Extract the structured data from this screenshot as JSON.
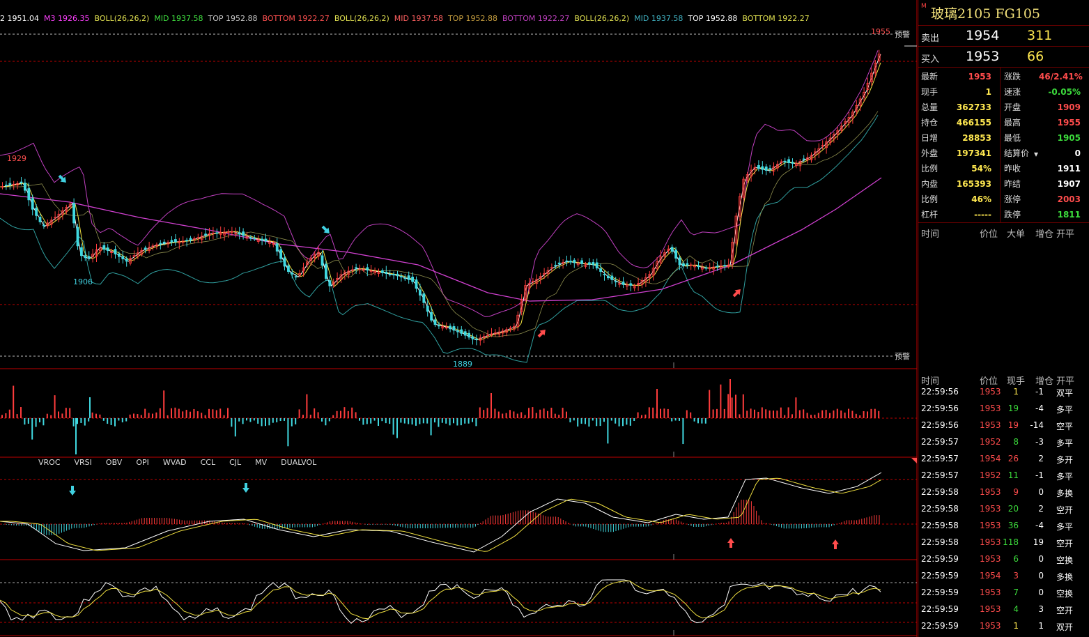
{
  "legend": [
    {
      "text": "2 1951.04",
      "color": "#ffffff"
    },
    {
      "text": "M3 1926.35",
      "color": "#ff40ff"
    },
    {
      "text": "BOLL(26,26,2)",
      "color": "#e0e050"
    },
    {
      "text": "MID 1937.58",
      "color": "#40e040"
    },
    {
      "text": "TOP 1952.88",
      "color": "#c8c8c8"
    },
    {
      "text": "BOTTOM 1922.27",
      "color": "#ff5050"
    },
    {
      "text": "BOLL(26,26,2)",
      "color": "#e0e050"
    },
    {
      "text": "MID 1937.58",
      "color": "#ff6060"
    },
    {
      "text": "TOP 1952.88",
      "color": "#c8a040"
    },
    {
      "text": "BOTTOM 1922.27",
      "color": "#c040c0"
    },
    {
      "text": "BOLL(26,26,2)",
      "color": "#e0e050"
    },
    {
      "text": "MID 1937.58",
      "color": "#40b0c0"
    },
    {
      "text": "TOP 1952.88",
      "color": "#ffffff"
    },
    {
      "text": "BOTTOM 1922.27",
      "color": "#e0e050"
    }
  ],
  "price_labels": {
    "high": "1955",
    "peak_left": "1929",
    "low_left": "1906",
    "low": "1889",
    "alert_top": "预警",
    "alert_bottom": "预警"
  },
  "indicator_tabs": [
    "VROC",
    "VRSI",
    "OBV",
    "OPI",
    "WVAD",
    "CCL",
    "CJL",
    "MV",
    "DUALVOL"
  ],
  "panel": {
    "m_badge": "M",
    "title": "玻璃2105  FG105",
    "ask": {
      "label": "卖出",
      "price": "1954",
      "volume": "311"
    },
    "bid": {
      "label": "买入",
      "price": "1953",
      "volume": "66"
    },
    "stats_left": [
      {
        "label": "最新",
        "value": "1953",
        "color": "red"
      },
      {
        "label": "现手",
        "value": "1",
        "color": "yel"
      },
      {
        "label": "总量",
        "value": "362733",
        "color": "yel"
      },
      {
        "label": "持仓",
        "value": "466155",
        "color": "yel"
      },
      {
        "label": "日增",
        "value": "28853",
        "color": "yel"
      },
      {
        "label": "外盘",
        "value": "197341",
        "color": "yel"
      },
      {
        "label": "比例",
        "value": "54%",
        "color": "yel"
      },
      {
        "label": "内盘",
        "value": "165393",
        "color": "yel"
      },
      {
        "label": "比例",
        "value": "46%",
        "color": "yel"
      },
      {
        "label": "杠杆",
        "value": "-----",
        "color": "yel"
      }
    ],
    "stats_right": [
      {
        "label": "涨跌",
        "value": "46/2.41%",
        "color": "red"
      },
      {
        "label": "速涨",
        "value": "-0.05%",
        "color": "grn"
      },
      {
        "label": "开盘",
        "value": "1909",
        "color": "red"
      },
      {
        "label": "最高",
        "value": "1955",
        "color": "red"
      },
      {
        "label": "最低",
        "value": "1905",
        "color": "grn"
      },
      {
        "label": "结算价",
        "value": "0",
        "color": "wht",
        "dropdown": "▾"
      },
      {
        "label": "昨收",
        "value": "1911",
        "color": "wht"
      },
      {
        "label": "昨结",
        "value": "1907",
        "color": "wht"
      },
      {
        "label": "涨停",
        "value": "2003",
        "color": "red"
      },
      {
        "label": "跌停",
        "value": "1811",
        "color": "grn"
      }
    ],
    "big_order_headers": [
      "时间",
      "价位",
      "大单",
      "增仓",
      "开平"
    ],
    "tick_headers": [
      "时间",
      "价位",
      "现手",
      "增仓",
      "开平"
    ],
    "ticks": [
      {
        "time": "22:59:56",
        "price": "1953",
        "vol": "1",
        "oi": "-1",
        "type": "双平",
        "pc": "red",
        "vc": "yel",
        "tc": "wht"
      },
      {
        "time": "22:59:56",
        "price": "1953",
        "vol": "19",
        "oi": "-4",
        "type": "多平",
        "pc": "red",
        "vc": "grn",
        "tc": "wht"
      },
      {
        "time": "22:59:56",
        "price": "1953",
        "vol": "19",
        "oi": "-14",
        "type": "空平",
        "pc": "red",
        "vc": "red",
        "tc": "wht"
      },
      {
        "time": "22:59:57",
        "price": "1952",
        "vol": "8",
        "oi": "-3",
        "type": "多平",
        "pc": "red",
        "vc": "grn",
        "tc": "wht"
      },
      {
        "time": "22:59:57",
        "price": "1954",
        "vol": "26",
        "oi": "2",
        "type": "多开",
        "pc": "red",
        "vc": "red",
        "tc": "wht"
      },
      {
        "time": "22:59:57",
        "price": "1952",
        "vol": "11",
        "oi": "-1",
        "type": "多平",
        "pc": "red",
        "vc": "grn",
        "tc": "wht"
      },
      {
        "time": "22:59:58",
        "price": "1953",
        "vol": "9",
        "oi": "0",
        "type": "多换",
        "pc": "red",
        "vc": "red",
        "tc": "wht"
      },
      {
        "time": "22:59:58",
        "price": "1953",
        "vol": "20",
        "oi": "2",
        "type": "空开",
        "pc": "red",
        "vc": "grn",
        "tc": "wht"
      },
      {
        "time": "22:59:58",
        "price": "1953",
        "vol": "36",
        "oi": "-4",
        "type": "多平",
        "pc": "red",
        "vc": "grn",
        "tc": "wht"
      },
      {
        "time": "22:59:58",
        "price": "1953",
        "vol": "118",
        "oi": "19",
        "type": "空开",
        "pc": "red",
        "vc": "grn",
        "tc": "wht"
      },
      {
        "time": "22:59:59",
        "price": "1953",
        "vol": "6",
        "oi": "0",
        "type": "空换",
        "pc": "red",
        "vc": "grn",
        "tc": "wht"
      },
      {
        "time": "22:59:59",
        "price": "1954",
        "vol": "3",
        "oi": "0",
        "type": "多换",
        "pc": "red",
        "vc": "red",
        "tc": "wht"
      },
      {
        "time": "22:59:59",
        "price": "1953",
        "vol": "7",
        "oi": "0",
        "type": "空换",
        "pc": "red",
        "vc": "grn",
        "tc": "wht"
      },
      {
        "time": "22:59:59",
        "price": "1953",
        "vol": "4",
        "oi": "3",
        "type": "空开",
        "pc": "red",
        "vc": "grn",
        "tc": "wht"
      },
      {
        "time": "22:59:59",
        "price": "1953",
        "vol": "1",
        "oi": "1",
        "type": "双开",
        "pc": "red",
        "vc": "yel",
        "tc": "wht"
      }
    ]
  },
  "colors": {
    "up": "#ff3c3c",
    "down": "#40d8e0",
    "grid_red": "#c00000"
  }
}
